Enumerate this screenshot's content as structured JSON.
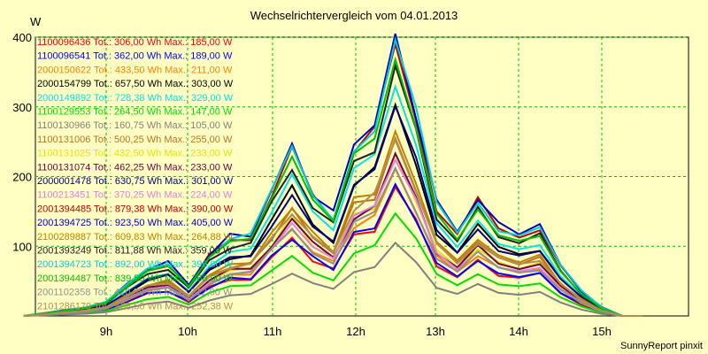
{
  "chart_data": {
    "type": "line",
    "title": "Wechselrichtervergleich vom 04.01.2013",
    "unit": "W",
    "footer": "SunnyReport pinxit",
    "ylim": [
      0,
      400
    ],
    "yticks": [
      100,
      200,
      300,
      400
    ],
    "xticks": [
      "9h",
      "10h",
      "11h",
      "12h",
      "13h",
      "14h",
      "15h"
    ],
    "grid": true,
    "legend_position": "top-left",
    "series": [
      {
        "name": "1100096436 Tot.: 306,00 Wh Max.: 185,00 W",
        "color": "#ff0000",
        "peak": 185
      },
      {
        "name": "1100096541 Tot.: 362,00 Wh Max.: 189,00 W",
        "color": "#0000ff",
        "peak": 189
      },
      {
        "name": "2000150622 Tot.: 433,50 Wh Max.: 211,00 W",
        "color": "#ff8000",
        "peak": 211
      },
      {
        "name": "2000154799 Tot.: 657,50 Wh Max.: 303,00 W",
        "color": "#000000",
        "peak": 303
      },
      {
        "name": "2000149892 Tot.: 728,38 Wh Max.: 329,00 W",
        "color": "#00e5e5",
        "peak": 329
      },
      {
        "name": "1100129553 Tot.: 264,50 Wh Max.: 147,00 W",
        "color": "#00dd00",
        "peak": 147
      },
      {
        "name": "1100130966 Tot.: 160,75 Wh Max.: 105,00 W",
        "color": "#808080",
        "peak": 105
      },
      {
        "name": "1100131006 Tot.: 500,25 Wh Max.: 255,00 W",
        "color": "#c07020",
        "peak": 255
      },
      {
        "name": "1100131025 Tot.: 432,50 Wh Max.: 233,00 W",
        "color": "#e5e500",
        "peak": 233
      },
      {
        "name": "1100131074 Tot.: 462,25 Wh Max.: 233,00 W",
        "color": "#700040",
        "peak": 233
      },
      {
        "name": "2000001478 Tot.: 630,75 Wh Max.: 301,00 W",
        "color": "#000080",
        "peak": 301
      },
      {
        "name": "1100213451 Tot.: 370,25 Wh Max.: 224,00 W",
        "color": "#e080e0",
        "peak": 224
      },
      {
        "name": "2001394485 Tot.: 879,38 Wh Max.: 390,00 W",
        "color": "#c00000",
        "peak": 390
      },
      {
        "name": "2001394725 Tot.: 923,50 Wh Max.: 405,00 W",
        "color": "#0000c0",
        "peak": 405
      },
      {
        "name": "2100289887 Tot.: 609,83 Wh Max.: 264,88 W",
        "color": "#c08000",
        "peak": 264.88
      },
      {
        "name": "2001393249 Tot.: 811,88 Wh Max.: 359,00 W",
        "color": "#202020",
        "peak": 359
      },
      {
        "name": "2001394723 Tot.: 892,00 Wh Max.: 396,00 W",
        "color": "#00d0d0",
        "peak": 396
      },
      {
        "name": "2001394487 Tot.: 839,50 Wh Max.: 368,00 W",
        "color": "#00c000",
        "peak": 368
      },
      {
        "name": "2001102358 Tot.: 420,38 Wh Max.: 212,00 W",
        "color": "#909090",
        "peak": 212
      },
      {
        "name": "2101286179 Tot.: 508,50 Wh Max.: 252,38 W",
        "color": "#b09050",
        "peak": 252.38
      }
    ],
    "profile_times": [
      "8h",
      "8.25h",
      "8.5h",
      "8.75h",
      "9h",
      "9.25h",
      "9.5h",
      "9.75h",
      "10h",
      "10.25h",
      "10.5h",
      "10.75h",
      "11h",
      "11.25h",
      "11.5h",
      "11.75h",
      "12h",
      "12.25h",
      "12.5h",
      "12.75h",
      "13h",
      "13.25h",
      "13.5h",
      "13.75h",
      "14h",
      "14.25h",
      "14.5h",
      "14.75h",
      "15h",
      "15.25h",
      "15.5h"
    ],
    "profile_relative": [
      0.0,
      0.01,
      0.02,
      0.03,
      0.05,
      0.11,
      0.17,
      0.19,
      0.11,
      0.22,
      0.28,
      0.29,
      0.44,
      0.6,
      0.44,
      0.36,
      0.62,
      0.68,
      1.0,
      0.73,
      0.4,
      0.3,
      0.42,
      0.32,
      0.3,
      0.32,
      0.18,
      0.09,
      0.03,
      0.0,
      0.0
    ]
  }
}
